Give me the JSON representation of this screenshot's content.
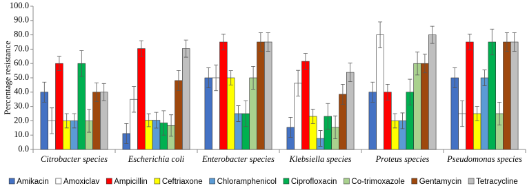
{
  "chart_data": {
    "type": "bar",
    "y_label": "Percentage  resistance",
    "categories": [
      "Citrobacter species",
      "Escherichia coli",
      "Enterobacter species",
      "Klebsiella species",
      "Proteus species",
      "Pseudomonas species"
    ],
    "ylim": [
      0,
      100
    ],
    "yticks": [
      {
        "value": 0,
        "label": "0.0"
      },
      {
        "value": 10,
        "label": "10.0"
      },
      {
        "value": 20,
        "label": "20.0"
      },
      {
        "value": 30,
        "label": "30.0"
      },
      {
        "value": 40,
        "label": "40.0"
      },
      {
        "value": 50,
        "label": "50.0"
      },
      {
        "value": 60,
        "label": "60.0"
      },
      {
        "value": 70,
        "label": "70.0"
      },
      {
        "value": 80,
        "label": "80.0"
      },
      {
        "value": 90,
        "label": "90.0"
      },
      {
        "value": 100,
        "label": "100.0"
      }
    ],
    "series": [
      {
        "name": "Amikacin",
        "color": "#4472c4",
        "values": [
          40,
          11.1,
          50,
          15.4,
          40,
          50
        ],
        "errors": [
          7,
          7,
          7,
          7,
          7,
          7
        ]
      },
      {
        "name": "Amoxiclav",
        "color": "#ffffff",
        "values": [
          20,
          35,
          50,
          46.2,
          80,
          25
        ],
        "errors": [
          9,
          9,
          9,
          9,
          9,
          9
        ]
      },
      {
        "name": "Ampicillin",
        "color": "#ff0000",
        "values": [
          60,
          70.4,
          75,
          61.5,
          40,
          75
        ],
        "errors": [
          5,
          5.5,
          5.5,
          5.5,
          5.5,
          5.5
        ]
      },
      {
        "name": "Ceftriaxone",
        "color": "#ffff00",
        "values": [
          20,
          20.4,
          50,
          23.1,
          20,
          25
        ],
        "errors": [
          5,
          4.5,
          5,
          5,
          5,
          5
        ]
      },
      {
        "name": "Chloramphenicol",
        "color": "#5b9bd5",
        "values": [
          20,
          20.4,
          25,
          7.7,
          20,
          50
        ],
        "errors": [
          5,
          5.5,
          5.5,
          5.5,
          5.5,
          5.5
        ]
      },
      {
        "name": "Ciprofloxacin",
        "color": "#00b050",
        "values": [
          60,
          18.5,
          25,
          23.1,
          40,
          75
        ],
        "errors": [
          9,
          8.5,
          9,
          9,
          9,
          9
        ]
      },
      {
        "name": "Co-trimoxazole",
        "color": "#a9d18e",
        "values": [
          20,
          16.7,
          50,
          15.4,
          60,
          25
        ],
        "errors": [
          8,
          7.5,
          8,
          8,
          8,
          8
        ]
      },
      {
        "name": "Gentamycin",
        "color": "#9e480e",
        "values": [
          40,
          48.1,
          75,
          38.5,
          60,
          75
        ],
        "errors": [
          6.5,
          7,
          6.5,
          7,
          6.5,
          6.5
        ]
      },
      {
        "name": "Tetracycline",
        "color": "#bfbfbf",
        "values": [
          40,
          70.4,
          75,
          53.8,
          80,
          75
        ],
        "errors": [
          6,
          6,
          6.5,
          6.5,
          6,
          6.5
        ]
      }
    ]
  }
}
